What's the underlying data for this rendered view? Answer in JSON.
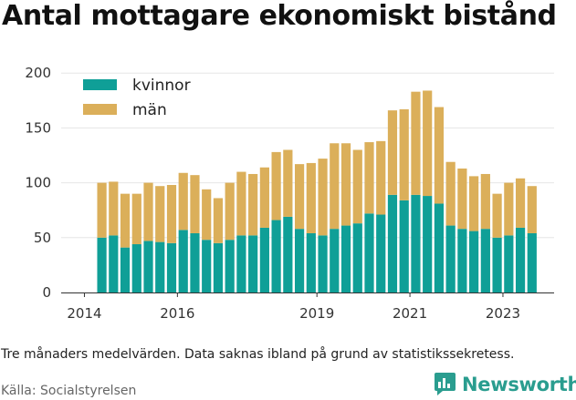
{
  "chart_data": {
    "type": "bar",
    "stacked": true,
    "title": "Antal mottagare ekonomiskt bistånd",
    "xlabel": "",
    "ylabel": "",
    "ylim": [
      0,
      210
    ],
    "yticks": [
      0,
      50,
      100,
      150,
      200
    ],
    "xticks": [
      {
        "label": "2014",
        "value": 2014.0
      },
      {
        "label": "2016",
        "value": 2016.0
      },
      {
        "label": "2019",
        "value": 2019.0
      },
      {
        "label": "2021",
        "value": 2021.0
      },
      {
        "label": "2023",
        "value": 2023.0
      }
    ],
    "grid": true,
    "legend": "top-left",
    "x": [
      2014.375,
      2014.625,
      2014.875,
      2015.125,
      2015.375,
      2015.625,
      2015.875,
      2016.125,
      2016.375,
      2016.625,
      2016.875,
      2017.125,
      2017.375,
      2017.625,
      2017.875,
      2018.125,
      2018.375,
      2018.625,
      2018.875,
      2019.125,
      2019.375,
      2019.625,
      2019.875,
      2020.125,
      2020.375,
      2020.625,
      2020.875,
      2021.125,
      2021.375,
      2021.625,
      2021.875,
      2022.125,
      2022.375,
      2022.625,
      2022.875,
      2023.125,
      2023.375,
      2023.625
    ],
    "series": [
      {
        "name": "kvinnor",
        "color": "#0f9f97",
        "values": [
          50,
          52,
          41,
          44,
          47,
          46,
          45,
          57,
          54,
          48,
          45,
          48,
          52,
          52,
          59,
          66,
          69,
          58,
          54,
          52,
          58,
          61,
          63,
          72,
          71,
          89,
          84,
          89,
          88,
          81,
          61,
          58,
          56,
          58,
          50,
          52,
          59,
          54
        ]
      },
      {
        "name": "män",
        "color": "#dbaf5a",
        "values": [
          50,
          49,
          49,
          46,
          53,
          51,
          53,
          52,
          53,
          46,
          41,
          52,
          58,
          56,
          55,
          62,
          61,
          59,
          64,
          70,
          78,
          75,
          67,
          65,
          67,
          77,
          83,
          94,
          96,
          88,
          58,
          55,
          50,
          50,
          40,
          48,
          45,
          43
        ]
      }
    ]
  },
  "footer": {
    "note": "Tre månaders medelvärden. Data saknas ibland på grund av statistikssekretess.",
    "source": "Källa: Socialstyrelsen",
    "brand": "Newsworthy",
    "brand_color": "#2a9d8f",
    "brand_icon": "bar-chart-speech-bubble-icon"
  }
}
